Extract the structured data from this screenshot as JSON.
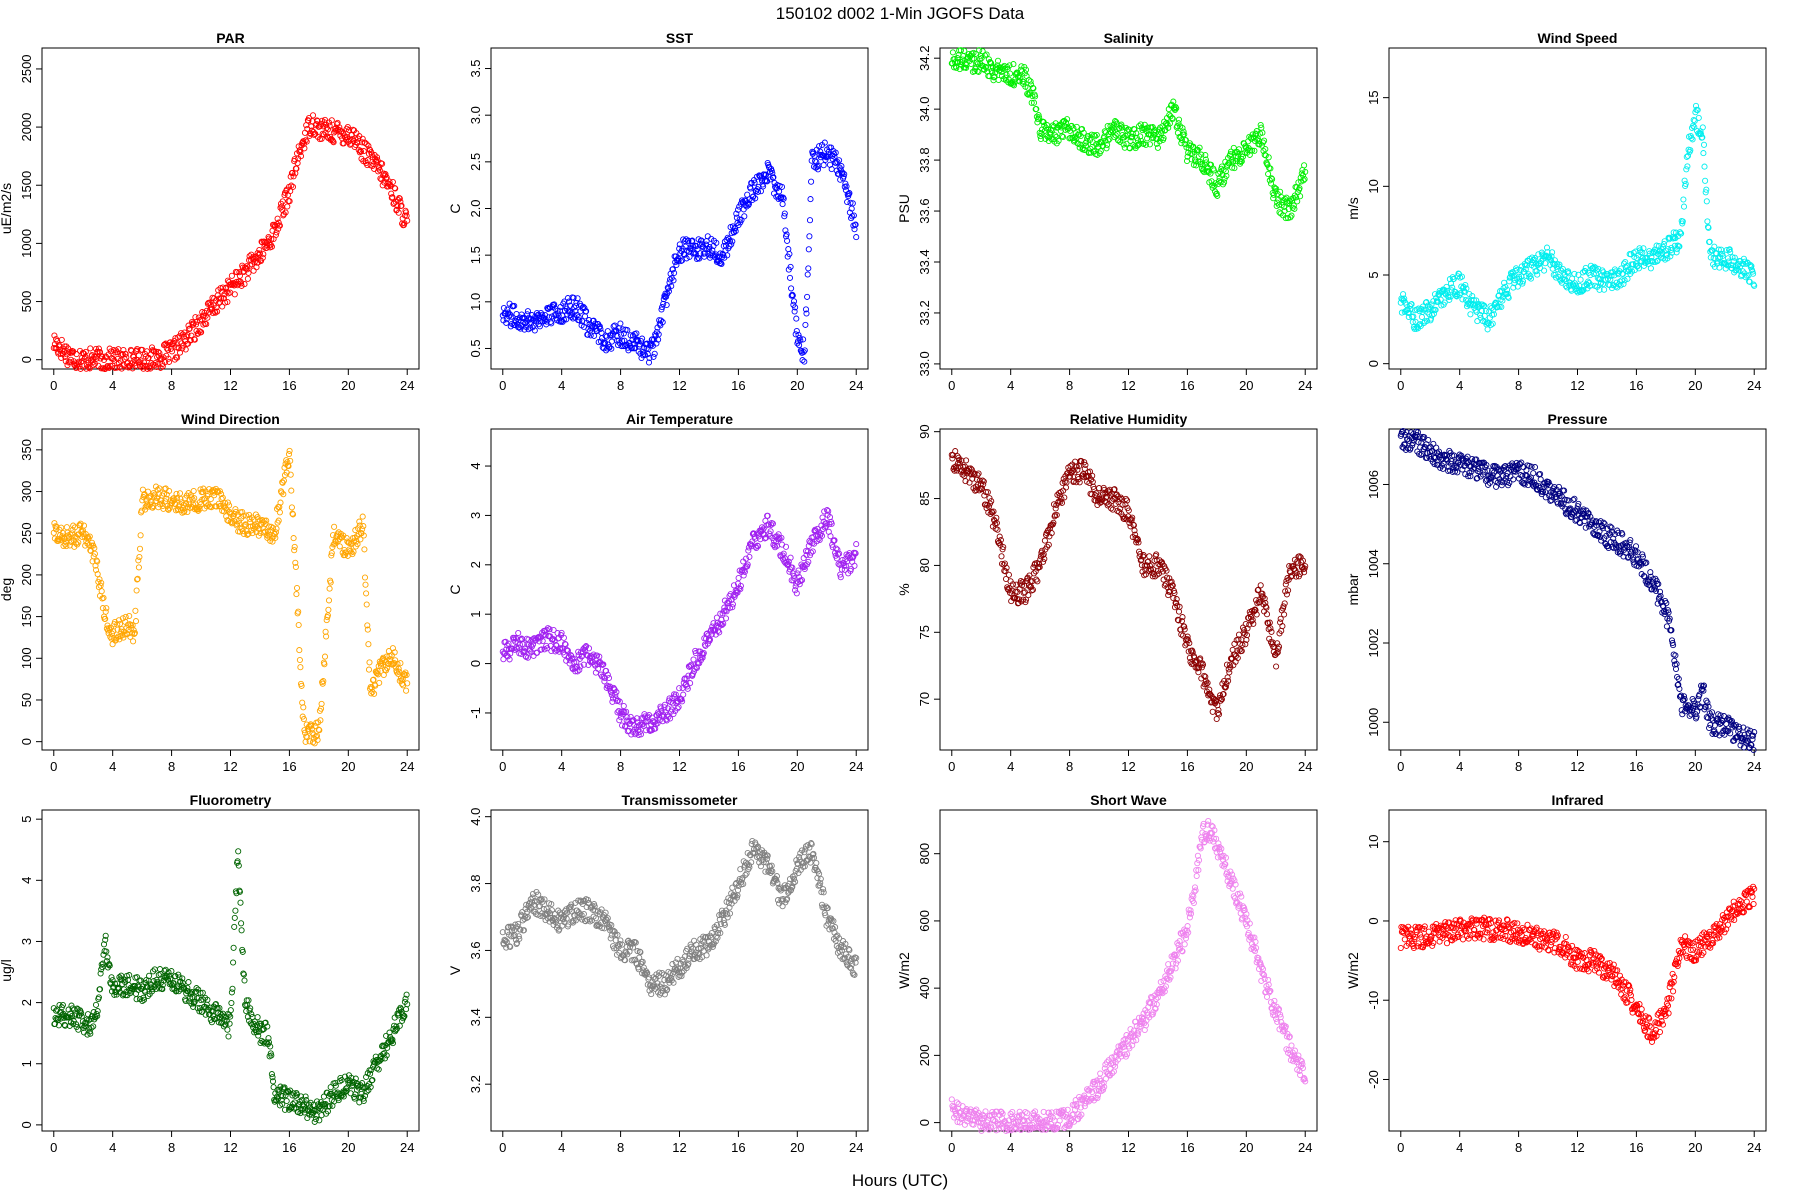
{
  "figure": {
    "title": "150102   d002   1-Min  JGOFS Data",
    "xlabel": "Hours (UTC)"
  },
  "chart_data": [
    {
      "type": "scatter",
      "title": "PAR",
      "ylabel": "uE/m2/s",
      "color": "#ff0000",
      "xlim": [
        -0.8,
        24.8
      ],
      "ylim": [
        -80,
        2680
      ],
      "xticks": [
        0,
        4,
        8,
        12,
        16,
        20,
        24
      ],
      "yticks": [
        0,
        500,
        1000,
        1500,
        2000,
        2500
      ],
      "series": [
        {
          "x": [
            0,
            0.5,
            1,
            1.5,
            2,
            3,
            4,
            5,
            6,
            7,
            8,
            9,
            10,
            11,
            12,
            13,
            14,
            15,
            16,
            16.5,
            17,
            17.5,
            18,
            19,
            20,
            20.5,
            21,
            22,
            23,
            23.5,
            24
          ],
          "y": [
            150,
            100,
            40,
            15,
            5,
            0,
            0,
            0,
            0,
            15,
            60,
            180,
            330,
            480,
            620,
            750,
            900,
            1100,
            1450,
            1700,
            1900,
            2050,
            1980,
            1960,
            1940,
            1900,
            1800,
            1650,
            1450,
            1300,
            1180
          ]
        }
      ]
    },
    {
      "type": "scatter",
      "title": "SST",
      "ylabel": "C",
      "color": "#0000ff",
      "xlim": [
        -0.8,
        24.8
      ],
      "ylim": [
        0.28,
        3.72
      ],
      "xticks": [
        0,
        4,
        8,
        12,
        16,
        20,
        24
      ],
      "yticks": [
        0.5,
        1.0,
        1.5,
        2.0,
        2.5,
        3.0,
        3.5
      ],
      "series": [
        {
          "x": [
            0,
            1,
            2,
            3,
            4,
            5,
            6,
            7,
            8,
            9,
            10,
            10.5,
            11,
            11.5,
            12,
            13,
            14,
            15,
            16,
            17,
            18,
            19,
            20,
            20.5,
            21,
            22,
            23,
            24
          ],
          "y": [
            0.9,
            0.82,
            0.8,
            0.85,
            0.9,
            0.95,
            0.7,
            0.6,
            0.65,
            0.55,
            0.45,
            0.6,
            1.0,
            1.3,
            1.55,
            1.55,
            1.6,
            1.5,
            1.9,
            2.2,
            2.4,
            2.1,
            0.6,
            0.45,
            2.5,
            2.6,
            2.4,
            1.8
          ]
        }
      ]
    },
    {
      "type": "scatter",
      "title": "Salinity",
      "ylabel": "PSU",
      "color": "#00ee00",
      "xlim": [
        -0.8,
        24.8
      ],
      "ylim": [
        32.98,
        34.24
      ],
      "xticks": [
        0,
        4,
        8,
        12,
        16,
        20,
        24
      ],
      "yticks": [
        33.0,
        33.2,
        33.4,
        33.6,
        33.8,
        34.0,
        34.2
      ],
      "series": [
        {
          "x": [
            0,
            1,
            2,
            3,
            4,
            5,
            5.5,
            6,
            7,
            8,
            9,
            10,
            11,
            12,
            13,
            14,
            15,
            16,
            17,
            18,
            19,
            20,
            21,
            22,
            23,
            24
          ],
          "y": [
            34.19,
            34.19,
            34.19,
            34.15,
            34.14,
            34.12,
            34.05,
            33.92,
            33.9,
            33.92,
            33.88,
            33.85,
            33.92,
            33.88,
            33.9,
            33.88,
            34.0,
            33.83,
            33.8,
            33.7,
            33.8,
            33.85,
            33.9,
            33.65,
            33.6,
            33.75
          ]
        }
      ]
    },
    {
      "type": "scatter",
      "title": "Wind Speed",
      "ylabel": "m/s",
      "color": "#00eeee",
      "xlim": [
        -0.8,
        24.8
      ],
      "ylim": [
        -0.3,
        17.8
      ],
      "xticks": [
        0,
        4,
        8,
        12,
        16,
        20,
        24
      ],
      "yticks": [
        0,
        5,
        10,
        15
      ],
      "series": [
        {
          "x": [
            0,
            1,
            2,
            3,
            4,
            5,
            6,
            7,
            8,
            9,
            10,
            11,
            12,
            13,
            14,
            15,
            16,
            17,
            18,
            19,
            19.5,
            20,
            20.5,
            21,
            22,
            23,
            24
          ],
          "y": [
            3.5,
            2.5,
            3.0,
            4.0,
            4.5,
            3.0,
            2.5,
            4.0,
            5.0,
            5.5,
            6.0,
            5.0,
            4.5,
            5.0,
            4.5,
            5.0,
            6.0,
            6.0,
            6.5,
            7.0,
            12.0,
            14.0,
            13.0,
            6.0,
            6.0,
            5.5,
            5.0
          ]
        }
      ]
    },
    {
      "type": "scatter",
      "title": "Wind Direction",
      "ylabel": "deg",
      "color": "#ffa500",
      "xlim": [
        -0.8,
        24.8
      ],
      "ylim": [
        -10,
        375
      ],
      "xticks": [
        0,
        4,
        8,
        12,
        16,
        20,
        24
      ],
      "yticks": [
        0,
        50,
        100,
        150,
        200,
        250,
        300,
        350
      ],
      "series": [
        {
          "x": [
            0,
            1,
            2,
            2.5,
            3,
            3.5,
            4,
            5,
            5.5,
            6,
            7,
            8,
            9,
            10,
            11,
            12,
            13,
            14,
            15,
            15.5,
            16,
            17,
            18,
            19,
            20,
            21,
            21.5,
            22,
            23,
            24
          ],
          "y": [
            250,
            245,
            250,
            240,
            200,
            150,
            130,
            140,
            130,
            290,
            295,
            290,
            285,
            290,
            295,
            270,
            260,
            260,
            250,
            300,
            350,
            10,
            10,
            250,
            230,
            260,
            60,
            80,
            100,
            70
          ]
        }
      ]
    },
    {
      "type": "scatter",
      "title": "Air Temperature",
      "ylabel": "C",
      "color": "#a020f0",
      "xlim": [
        -0.8,
        24.8
      ],
      "ylim": [
        -1.75,
        4.75
      ],
      "xticks": [
        0,
        4,
        8,
        12,
        16,
        20,
        24
      ],
      "yticks": [
        -1,
        0,
        1,
        2,
        3,
        4
      ],
      "series": [
        {
          "x": [
            0,
            1,
            2,
            3,
            4,
            5,
            6,
            7,
            8,
            9,
            10,
            11,
            12,
            13,
            14,
            15,
            16,
            17,
            18,
            19,
            20,
            21,
            22,
            23,
            24
          ],
          "y": [
            0.2,
            0.4,
            0.3,
            0.5,
            0.4,
            0.0,
            0.2,
            -0.3,
            -1.0,
            -1.3,
            -1.2,
            -1.0,
            -0.7,
            0.0,
            0.5,
            1.0,
            1.6,
            2.5,
            2.8,
            2.3,
            1.6,
            2.4,
            3.0,
            1.9,
            2.2
          ]
        }
      ]
    },
    {
      "type": "scatter",
      "title": "Relative Humidity",
      "ylabel": "%",
      "color": "#8b0000",
      "xlim": [
        -0.8,
        24.8
      ],
      "ylim": [
        66.2,
        90.2
      ],
      "xticks": [
        0,
        4,
        8,
        12,
        16,
        20,
        24
      ],
      "yticks": [
        70,
        75,
        80,
        85,
        90
      ],
      "series": [
        {
          "x": [
            0,
            1,
            2,
            3,
            4,
            5,
            6,
            7,
            8,
            9,
            10,
            11,
            12,
            13,
            14,
            15,
            16,
            17,
            18,
            19,
            20,
            21,
            22,
            23,
            24
          ],
          "y": [
            88,
            87,
            86,
            83,
            78,
            78,
            80,
            84,
            87,
            87,
            85,
            85,
            84,
            80,
            80,
            78,
            74,
            72,
            69,
            73,
            75,
            78,
            73,
            80,
            80
          ]
        }
      ]
    },
    {
      "type": "scatter",
      "title": "Pressure",
      "ylabel": "mbar",
      "color": "#000080",
      "xlim": [
        -0.8,
        24.8
      ],
      "ylim": [
        999.3,
        1007.4
      ],
      "xticks": [
        0,
        4,
        8,
        12,
        16,
        20,
        24
      ],
      "yticks": [
        1000,
        1002,
        1004,
        1006
      ],
      "series": [
        {
          "x": [
            0,
            1,
            2,
            3,
            4,
            5,
            6,
            7,
            8,
            9,
            10,
            11,
            12,
            13,
            14,
            15,
            16,
            17,
            18,
            18.5,
            19,
            20,
            20.5,
            21,
            22,
            23,
            24
          ],
          "y": [
            1007.1,
            1007.1,
            1006.8,
            1006.6,
            1006.5,
            1006.4,
            1006.2,
            1006.2,
            1006.3,
            1006.2,
            1005.9,
            1005.6,
            1005.3,
            1005.0,
            1004.7,
            1004.5,
            1004.2,
            1003.6,
            1002.8,
            1002.0,
            1000.5,
            1000.3,
            1000.8,
            1000.0,
            999.9,
            999.7,
            999.5
          ]
        }
      ]
    },
    {
      "type": "scatter",
      "title": "Fluorometry",
      "ylabel": "ug/l",
      "color": "#006400",
      "xlim": [
        -0.8,
        24.8
      ],
      "ylim": [
        -0.1,
        5.15
      ],
      "xticks": [
        0,
        4,
        8,
        12,
        16,
        20,
        24
      ],
      "yticks": [
        0,
        1,
        2,
        3,
        4,
        5
      ],
      "series": [
        {
          "x": [
            0,
            1,
            2,
            2.5,
            3,
            3.5,
            4,
            5,
            6,
            7,
            8,
            9,
            10,
            11,
            12,
            12.5,
            13,
            14,
            14.5,
            15,
            16,
            17,
            18,
            19,
            20,
            21,
            22,
            23,
            24
          ],
          "y": [
            1.8,
            1.8,
            1.7,
            1.6,
            2.0,
            3.0,
            2.2,
            2.3,
            2.2,
            2.4,
            2.4,
            2.2,
            2.0,
            1.8,
            1.6,
            4.5,
            2.0,
            1.5,
            1.5,
            0.5,
            0.4,
            0.3,
            0.2,
            0.5,
            0.7,
            0.5,
            1.0,
            1.5,
            2.0
          ]
        }
      ]
    },
    {
      "type": "scatter",
      "title": "Transmissometer",
      "ylabel": "V",
      "color": "#808080",
      "xlim": [
        -0.8,
        24.8
      ],
      "ylim": [
        3.06,
        4.02
      ],
      "xticks": [
        0,
        4,
        8,
        12,
        16,
        20,
        24
      ],
      "yticks": [
        3.2,
        3.4,
        3.6,
        3.8,
        4.0
      ],
      "series": [
        {
          "x": [
            0,
            1,
            2,
            3,
            4,
            5,
            6,
            7,
            8,
            9,
            10,
            11,
            12,
            13,
            14,
            15,
            16,
            17,
            18,
            19,
            20,
            21,
            22,
            23,
            24
          ],
          "y": [
            3.63,
            3.65,
            3.75,
            3.72,
            3.68,
            3.72,
            3.72,
            3.68,
            3.6,
            3.6,
            3.5,
            3.5,
            3.55,
            3.6,
            3.62,
            3.7,
            3.8,
            3.9,
            3.85,
            3.75,
            3.85,
            3.9,
            3.7,
            3.6,
            3.55
          ]
        }
      ]
    },
    {
      "type": "scatter",
      "title": "Short Wave",
      "ylabel": "W/m2",
      "color": "#ee82ee",
      "xlim": [
        -0.8,
        24.8
      ],
      "ylim": [
        -25,
        930
      ],
      "xticks": [
        0,
        4,
        8,
        12,
        16,
        20,
        24
      ],
      "yticks": [
        0,
        200,
        400,
        600,
        800
      ],
      "series": [
        {
          "x": [
            0,
            0.5,
            1,
            2,
            3,
            4,
            5,
            6,
            7,
            8,
            9,
            10,
            11,
            12,
            13,
            14,
            15,
            16,
            16.5,
            17,
            17.5,
            18,
            19,
            20,
            21,
            22,
            23,
            24
          ],
          "y": [
            40,
            30,
            15,
            5,
            0,
            0,
            0,
            0,
            5,
            20,
            60,
            110,
            180,
            240,
            300,
            380,
            470,
            580,
            700,
            860,
            870,
            820,
            720,
            600,
            450,
            330,
            220,
            130
          ]
        }
      ]
    },
    {
      "type": "scatter",
      "title": "Infrared",
      "ylabel": "W/m2",
      "color": "#ff0000",
      "xlim": [
        -0.8,
        24.8
      ],
      "ylim": [
        -26.5,
        14
      ],
      "xticks": [
        0,
        4,
        8,
        12,
        16,
        20,
        24
      ],
      "yticks": [
        -20,
        -10,
        0,
        10
      ],
      "series": [
        {
          "x": [
            0,
            1,
            2,
            3,
            4,
            5,
            6,
            7,
            8,
            9,
            10,
            11,
            12,
            13,
            14,
            15,
            16,
            17,
            18,
            19,
            20,
            21,
            22,
            23,
            24
          ],
          "y": [
            -2,
            -2,
            -2,
            -1.5,
            -1,
            -1,
            -1,
            -1,
            -1.5,
            -2,
            -2.5,
            -3,
            -5,
            -5,
            -6,
            -8,
            -11,
            -14,
            -12,
            -3,
            -4,
            -2,
            0,
            2,
            3
          ]
        }
      ]
    }
  ]
}
